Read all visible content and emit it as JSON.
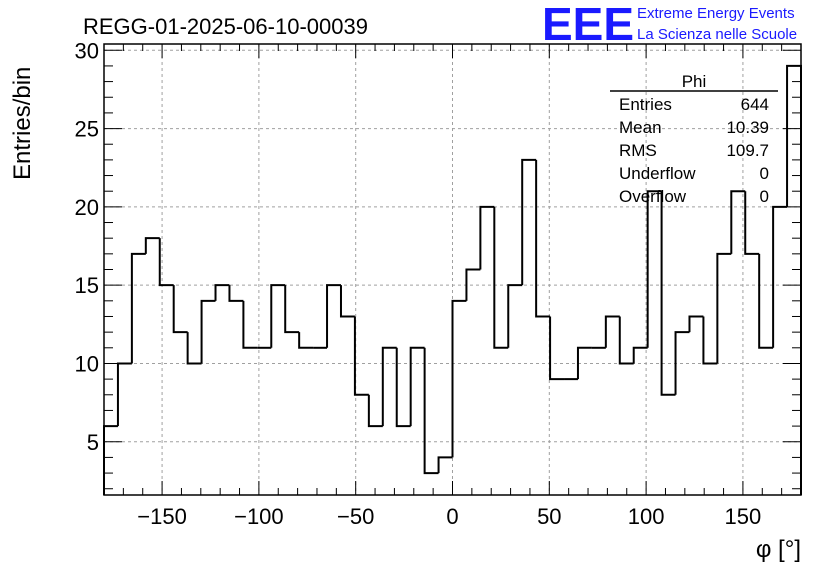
{
  "chart_data": {
    "type": "bar",
    "title": "REGG-01-2025-06-10-00039",
    "xlabel": "φ [°]",
    "ylabel": "Entries/bin",
    "xlim": [
      -180,
      180
    ],
    "ylim": [
      1.6,
      30.4
    ],
    "xticks": [
      -150,
      -100,
      -50,
      0,
      50,
      100,
      150
    ],
    "xtick_labels": [
      "−150",
      "−100",
      "−50",
      "0",
      "50",
      "100",
      "150"
    ],
    "yticks": [
      5,
      10,
      15,
      20,
      25,
      30
    ],
    "bin_width": 7.2,
    "bin_start": -180,
    "values": [
      6,
      10,
      17,
      18,
      15,
      12,
      10,
      14,
      15,
      14,
      11,
      11,
      15,
      12,
      11,
      11,
      15,
      13,
      8,
      6,
      11,
      6,
      11,
      3,
      4,
      14,
      16,
      20,
      11,
      15,
      23,
      13,
      9,
      9,
      11,
      11,
      13,
      10,
      11,
      21,
      8,
      12,
      13,
      10,
      17,
      21,
      17,
      11,
      20,
      29
    ],
    "grid": true,
    "line_color": "#000000",
    "stats": {
      "title": "Phi",
      "rows": [
        {
          "label": "Entries",
          "value": "644"
        },
        {
          "label": "Mean",
          "value": "10.39"
        },
        {
          "label": "RMS",
          "value": "109.7"
        },
        {
          "label": "Underflow",
          "value": "0"
        },
        {
          "label": "Overflow",
          "value": "0"
        }
      ]
    }
  },
  "logo": {
    "mark": "EEE",
    "line1": "Extreme Energy Events",
    "line2": "La Scienza nelle Scuole",
    "color": "#1a1aff"
  }
}
